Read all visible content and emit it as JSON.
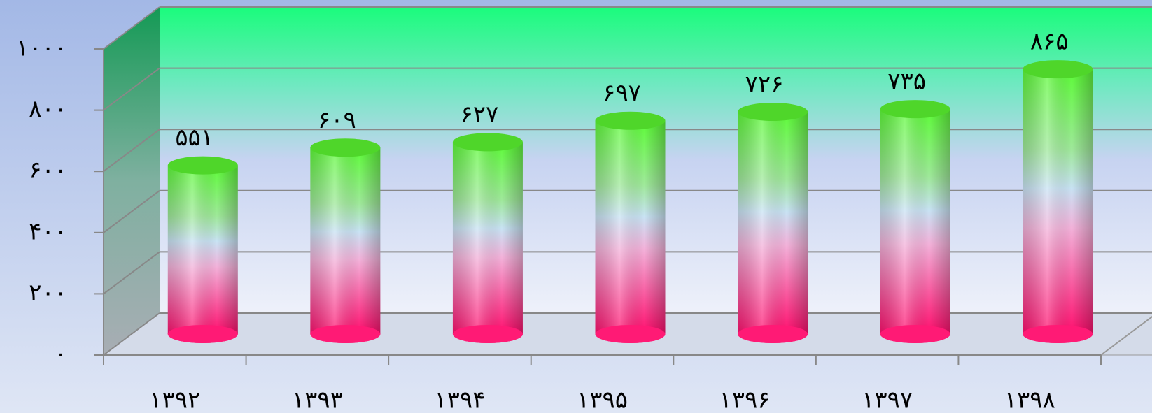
{
  "chart_data": {
    "type": "bar3d",
    "categories": [
      "۱۳۹۲",
      "۱۳۹۳",
      "۱۳۹۴",
      "۱۳۹۵",
      "۱۳۹۶",
      "۱۳۹۷",
      "۱۳۹۸"
    ],
    "values": [
      551,
      609,
      627,
      697,
      726,
      735,
      865
    ],
    "value_labels": [
      "۵۵۱",
      "۶۰۹",
      "۶۲۷",
      "۶۹۷",
      "۷۲۶",
      "۷۳۵",
      "۸۶۵"
    ],
    "ylim": [
      0,
      1000
    ],
    "yticks": [
      {
        "value": 0,
        "label": "۰"
      },
      {
        "value": 200,
        "label": "۲۰۰"
      },
      {
        "value": 400,
        "label": "۴۰۰"
      },
      {
        "value": 600,
        "label": "۶۰۰"
      },
      {
        "value": 800,
        "label": "۸۰۰"
      },
      {
        "value": 1000,
        "label": "۱۰۰۰"
      }
    ],
    "grid": true
  }
}
